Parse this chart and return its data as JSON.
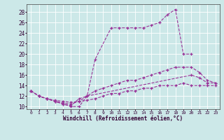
{
  "xlabel": "Windchill (Refroidissement éolien,°C)",
  "bg_color": "#cce8e8",
  "line_color": "#993399",
  "xlim": [
    -0.5,
    23.5
  ],
  "ylim": [
    9.5,
    29.5
  ],
  "xticks": [
    0,
    1,
    2,
    3,
    4,
    5,
    6,
    7,
    8,
    9,
    10,
    11,
    12,
    13,
    14,
    15,
    16,
    17,
    18,
    19,
    20,
    21,
    22,
    23
  ],
  "yticks": [
    10,
    12,
    14,
    16,
    18,
    20,
    22,
    24,
    26,
    28
  ],
  "series": [
    {
      "x": [
        0,
        1,
        2,
        3,
        4,
        5,
        6,
        7,
        8,
        10,
        11,
        12,
        13,
        14,
        15,
        16,
        17,
        18,
        19,
        20
      ],
      "y": [
        13,
        12,
        11.5,
        11,
        10.5,
        10,
        10,
        12,
        19,
        25,
        25,
        25,
        25,
        25,
        25.5,
        26,
        27.5,
        28.5,
        20,
        20
      ]
    },
    {
      "x": [
        0,
        1,
        2,
        3,
        4,
        5,
        6,
        7,
        20,
        21,
        22,
        23
      ],
      "y": [
        13,
        12,
        11.5,
        11,
        10.5,
        10.2,
        11.5,
        12,
        16,
        15.5,
        14.5,
        14.5
      ]
    },
    {
      "x": [
        0,
        1,
        2,
        3,
        4,
        5,
        6,
        7,
        8,
        9,
        10,
        11,
        12,
        13,
        14,
        15,
        16,
        17,
        18,
        19,
        20,
        21,
        22,
        23
      ],
      "y": [
        13,
        12,
        11.5,
        11,
        10.7,
        10.5,
        11,
        12,
        13,
        13.5,
        14,
        14.5,
        15,
        15,
        15.5,
        16,
        16.5,
        17,
        17.5,
        17.5,
        17.5,
        16.5,
        15,
        14.5
      ]
    },
    {
      "x": [
        0,
        1,
        2,
        3,
        4,
        5,
        6,
        7,
        8,
        9,
        10,
        11,
        12,
        13,
        14,
        15,
        16,
        17,
        18,
        19,
        20,
        21,
        22,
        23
      ],
      "y": [
        13,
        12,
        11.5,
        11.2,
        11,
        10.8,
        11,
        11.2,
        11.5,
        12,
        12.5,
        12.5,
        13,
        13,
        13.5,
        13.5,
        14,
        14,
        14,
        14.5,
        14,
        14,
        14,
        14
      ]
    }
  ]
}
